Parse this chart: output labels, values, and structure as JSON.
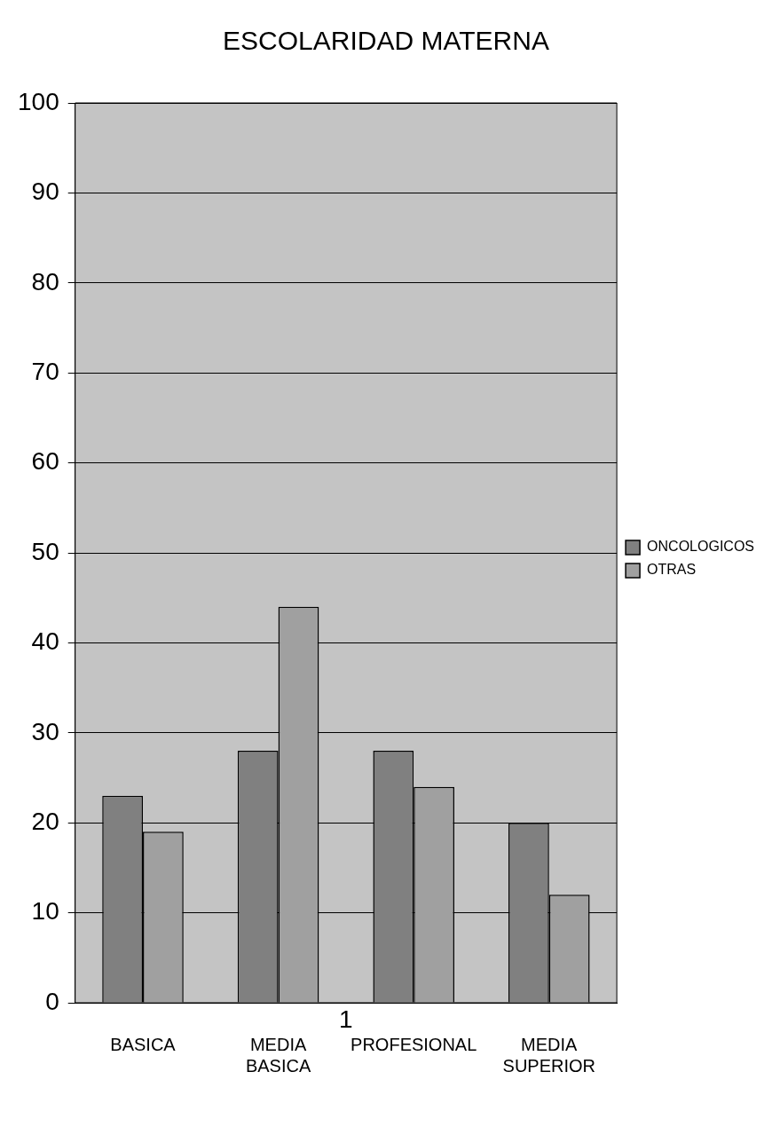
{
  "chart_data": {
    "type": "bar",
    "title": "ESCOLARIDAD MATERNA",
    "categories": [
      "BASICA",
      "MEDIA BASICA",
      "PROFESIONAL",
      "MEDIA SUPERIOR"
    ],
    "series": [
      {
        "name": "ONCOLOGICOS",
        "color": "#808080",
        "values": [
          23,
          28,
          28,
          20
        ]
      },
      {
        "name": "OTRAS",
        "color": "#a0a0a0",
        "values": [
          19,
          44,
          24,
          12
        ]
      }
    ],
    "ylim": [
      0,
      100
    ],
    "yticks": [
      0,
      10,
      20,
      30,
      40,
      50,
      60,
      70,
      80,
      90,
      100
    ],
    "grid": "y",
    "legend": "right",
    "annotations": [
      "1"
    ]
  }
}
